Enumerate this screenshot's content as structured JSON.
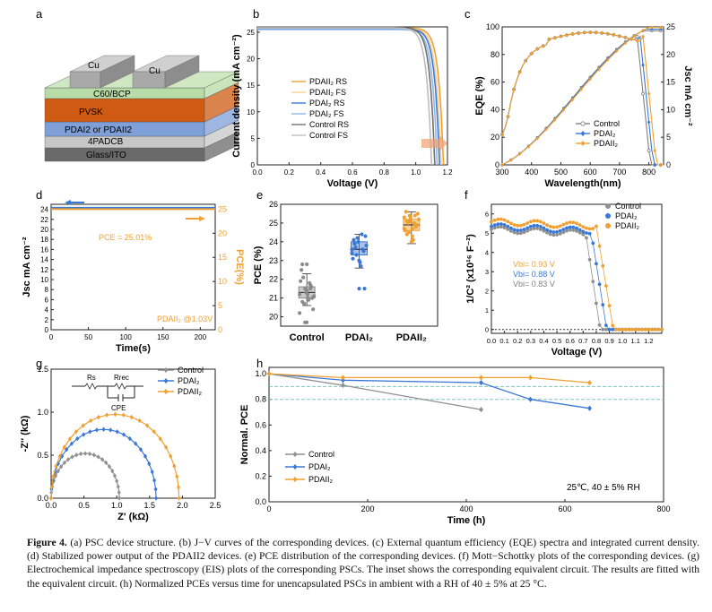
{
  "panel_letters": [
    "a",
    "b",
    "c",
    "d",
    "e",
    "f",
    "g",
    "h"
  ],
  "device": {
    "layers": [
      "Cu",
      "Cu",
      "C60/BCP",
      "PVSK",
      "PDAI2 or PDAII2",
      "4PADCB",
      "Glass/ITO"
    ],
    "colors": {
      "cu": "#a9a9a9",
      "c60": "#b8dca8",
      "pvsk": "#cf5a12",
      "pdai": "#7e9fd8",
      "padcb": "#c7c7c7",
      "glass": "#6a6a6a"
    }
  },
  "caption": {
    "label": "Figure 4.",
    "text": " (a) PSC device structure. (b) J−V curves of the corresponding devices. (c) External quantum efficiency (EQE) spectra and integrated current density. (d) Stabilized power output of the PDAII2 devices. (e) PCE distribution of the corresponding devices. (f) Mott−Schottky plots of the corresponding devices. (g) Electrochemical impedance spectroscopy (EIS) plots of the corresponding PSCs. The inset shows the corresponding equivalent circuit. The results are fitted with the equivalent circuit. (h) Normalized PCEs versus time for unencapsulated PSCs in ambient with a RH of 40 ± 5% at 25 °C."
  },
  "chart_data": [
    {
      "panel": "b",
      "type": "line",
      "xlabel": "Voltage (V)",
      "ylabel": "Current density (mA cm⁻²)",
      "xlim": [
        0,
        1.2
      ],
      "ylim": [
        0,
        26
      ],
      "xticks": [
        "0.0",
        "0.2",
        "0.4",
        "0.6",
        "0.8",
        "1.0",
        "1.2"
      ],
      "yticks": [
        "0",
        "5",
        "10",
        "15",
        "20",
        "25"
      ],
      "legend": "center-right",
      "series": [
        {
          "name": "PDAII₂ RS",
          "color": "#f0a030",
          "jsc": 25.8,
          "voc": 1.175
        },
        {
          "name": "PDAII₂ FS",
          "color": "#f7cf8e",
          "jsc": 25.7,
          "voc": 1.16
        },
        {
          "name": "PDAI₂ RS",
          "color": "#3a78d6",
          "jsc": 25.6,
          "voc": 1.15
        },
        {
          "name": "PDAI₂ FS",
          "color": "#8fb6ec",
          "jsc": 25.5,
          "voc": 1.135
        },
        {
          "name": "Control RS",
          "color": "#707070",
          "jsc": 25.9,
          "voc": 1.12
        },
        {
          "name": "Control FS",
          "color": "#bdbdbd",
          "jsc": 25.8,
          "voc": 1.1
        }
      ]
    },
    {
      "panel": "c",
      "type": "line",
      "xlabel": "Wavelength(nm)",
      "ylabel": "EQE (%)",
      "y2label": "Jsc mA cm⁻²",
      "xlim": [
        300,
        850
      ],
      "ylim": [
        0,
        100
      ],
      "y2lim": [
        0,
        25
      ],
      "xticks": [
        "300",
        "400",
        "500",
        "600",
        "700",
        "800"
      ],
      "yticks": [
        "0",
        "20",
        "40",
        "60",
        "80",
        "100"
      ],
      "y2ticks": [
        "0",
        "5",
        "10",
        "15",
        "20",
        "25"
      ],
      "legend": "bottom-right",
      "series": [
        {
          "name": "Control",
          "color": "#808080",
          "edge": 760,
          "jsc_end": 24.3
        },
        {
          "name": "PDAI₂",
          "color": "#3a78d6",
          "edge": 770,
          "jsc_end": 24.6
        },
        {
          "name": "PDAII₂",
          "color": "#f0a030",
          "edge": 780,
          "jsc_end": 24.9
        }
      ]
    },
    {
      "panel": "d",
      "type": "line",
      "xlabel": "Time(s)",
      "ylabel": "Jsc mA cm⁻²",
      "y2label": "PCE(%)",
      "xlim": [
        0,
        220
      ],
      "ylim": [
        0,
        25
      ],
      "y2lim": [
        0,
        26
      ],
      "xticks": [
        "0",
        "50",
        "100",
        "150",
        "200"
      ],
      "yticks": [
        "0",
        "2",
        "4",
        "6",
        "8",
        "10",
        "12",
        "14",
        "16",
        "18",
        "20",
        "22",
        "24"
      ],
      "y2ticks": [
        "0",
        "5",
        "10",
        "15",
        "20",
        "25"
      ],
      "annotations": [
        "PCE = 25.01%",
        "PDAII₂ @1.03V"
      ],
      "series": [
        {
          "name": "Jsc",
          "axis": "left",
          "color": "#3a78d6",
          "value": 24.3
        },
        {
          "name": "PCE",
          "axis": "right",
          "color": "#f0a030",
          "value": 25.01
        }
      ]
    },
    {
      "panel": "e",
      "type": "box",
      "ylabel": "PCE (%)",
      "ylim": [
        19.5,
        26
      ],
      "yticks": [
        "20",
        "21",
        "22",
        "23",
        "24",
        "25",
        "26"
      ],
      "categories": [
        "Control",
        "PDAI₂",
        "PDAII₂"
      ],
      "series": [
        {
          "name": "Control",
          "color": "#8a8a8a",
          "q1": 21.0,
          "median": 21.3,
          "q3": 21.6,
          "min": 20.6,
          "max": 22.3,
          "mean": 21.25,
          "outliers": [
            19.7,
            22.8
          ],
          "points": [
            21.2,
            20.8,
            21.5,
            21.0,
            21.7,
            20.4,
            21.9,
            22.1,
            21.3,
            20.9,
            21.6,
            21.1,
            22.5,
            20.7,
            21.4,
            21.8,
            21.0,
            20.2,
            22.8,
            19.7,
            21.2,
            21.5
          ]
        },
        {
          "name": "PDAI₂",
          "color": "#3a78d6",
          "q1": 23.3,
          "median": 23.6,
          "q3": 24.0,
          "min": 22.6,
          "max": 24.4,
          "mean": 23.65,
          "outliers": [
            21.5
          ],
          "points": [
            23.4,
            23.9,
            24.2,
            22.9,
            23.6,
            24.3,
            23.1,
            23.7,
            24.0,
            22.7,
            23.5,
            23.8,
            24.1,
            23.3,
            23.0,
            24.4,
            21.5,
            23.6,
            23.9
          ]
        },
        {
          "name": "PDAII₂",
          "color": "#f0a030",
          "q1": 24.6,
          "median": 24.9,
          "q3": 25.2,
          "min": 23.9,
          "max": 25.6,
          "mean": 24.9,
          "points": [
            24.7,
            25.1,
            25.4,
            24.3,
            24.9,
            25.5,
            24.6,
            25.0,
            25.3,
            24.1,
            24.8,
            25.2,
            25.6,
            24.5,
            24.0,
            25.0,
            24.9,
            25.3,
            24.4,
            25.1,
            24.7,
            25.4
          ]
        }
      ]
    },
    {
      "panel": "f",
      "type": "scatter",
      "xlabel": "Voltage (V)",
      "ylabel": "1/C² (x10¹⁶ F⁻²)",
      "xlim": [
        0,
        1.3
      ],
      "ylim": [
        -0.2,
        6.5
      ],
      "xticks": [
        "0.0",
        "0.1",
        "0.2",
        "0.3",
        "0.4",
        "0.5",
        "0.6",
        "0.7",
        "0.8",
        "0.9",
        "1.0",
        "1.1",
        "1.2"
      ],
      "yticks": [
        "0",
        "1",
        "2",
        "3",
        "4",
        "5",
        "6"
      ],
      "legend": "top-right",
      "annotations": [
        {
          "text": "Vbi= 0.93 V",
          "color": "#f0a030"
        },
        {
          "text": "Vbi= 0.88 V",
          "color": "#3a78d6"
        },
        {
          "text": "Vbi= 0.83 V",
          "color": "#808080"
        }
      ],
      "series": [
        {
          "name": "Control",
          "color": "#909090",
          "plateau": 5.2,
          "knee": 0.72,
          "vbi": 0.83
        },
        {
          "name": "PDAI₂",
          "color": "#3a78d6",
          "plateau": 5.35,
          "knee": 0.76,
          "vbi": 0.88
        },
        {
          "name": "PDAII₂",
          "color": "#f0a030",
          "plateau": 5.6,
          "knee": 0.8,
          "vbi": 0.93
        }
      ]
    },
    {
      "panel": "g",
      "type": "scatter",
      "xlabel": "Z' (kΩ)",
      "ylabel": "-Z'' (kΩ)",
      "xlim": [
        0,
        2.5
      ],
      "ylim": [
        0,
        1.5
      ],
      "xticks": [
        "0.0",
        "0.5",
        "1.0",
        "1.5",
        "2.0",
        "2.5"
      ],
      "yticks": [
        "0.0",
        "0.5",
        "1.0",
        "1.5"
      ],
      "legend": "top-right",
      "inset": {
        "elements": [
          "Rs",
          "Rrec",
          "CPE"
        ]
      },
      "series": [
        {
          "name": "Control",
          "color": "#909090",
          "r": 1.04
        },
        {
          "name": "PDAI₂",
          "color": "#3a78d6",
          "r": 1.6
        },
        {
          "name": "PDAII₂",
          "color": "#f0a030",
          "r": 1.95
        }
      ]
    },
    {
      "panel": "h",
      "type": "line",
      "xlabel": "Time (h)",
      "ylabel": "Normal. PCE",
      "xlim": [
        0,
        800
      ],
      "ylim": [
        0.0,
        1.05
      ],
      "xticks": [
        "0",
        "200",
        "400",
        "600",
        "800"
      ],
      "yticks": [
        "0.0",
        "0.2",
        "0.4",
        "0.6",
        "0.8",
        "1.0"
      ],
      "reference_lines": [
        0.9,
        0.8
      ],
      "legend": "bottom-left",
      "annotation": "25℃, 40 ± 5% RH",
      "series": [
        {
          "name": "Control",
          "color": "#909090",
          "x": [
            0,
            150,
            430
          ],
          "y": [
            1.0,
            0.91,
            0.72
          ]
        },
        {
          "name": "PDAI₂",
          "color": "#3a78d6",
          "x": [
            0,
            150,
            430,
            530,
            650
          ],
          "y": [
            1.0,
            0.95,
            0.93,
            0.8,
            0.73
          ]
        },
        {
          "name": "PDAII₂",
          "color": "#f0a030",
          "x": [
            0,
            150,
            430,
            530,
            650
          ],
          "y": [
            1.0,
            0.97,
            0.97,
            0.97,
            0.93
          ]
        }
      ]
    }
  ]
}
